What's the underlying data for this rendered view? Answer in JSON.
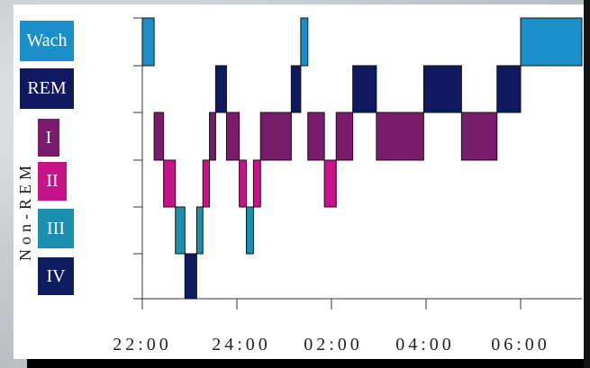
{
  "chart_data": {
    "type": "step",
    "stages": [
      "Wach",
      "REM",
      "I",
      "II",
      "III",
      "IV"
    ],
    "stage_group_label": "Non-REM",
    "stage_colors": {
      "Wach": "#1b8fc9",
      "REM": "#0f1a5e",
      "I": "#7a1c6c",
      "II": "#c8128a",
      "III": "#1b8fb0",
      "IV": "#101c62"
    },
    "x_ticks": [
      "22:00",
      "24:00",
      "02:00",
      "04:00",
      "06:00"
    ],
    "x_range_hours": [
      22.0,
      31.0
    ],
    "hypnogram": [
      {
        "start": 22.0,
        "end": 22.25,
        "stage": "Wach"
      },
      {
        "start": 22.25,
        "end": 22.45,
        "stage": "I"
      },
      {
        "start": 22.45,
        "end": 22.7,
        "stage": "II"
      },
      {
        "start": 22.7,
        "end": 22.9,
        "stage": "III"
      },
      {
        "start": 22.9,
        "end": 23.15,
        "stage": "IV"
      },
      {
        "start": 23.15,
        "end": 23.28,
        "stage": "III"
      },
      {
        "start": 23.28,
        "end": 23.42,
        "stage": "II"
      },
      {
        "start": 23.42,
        "end": 23.55,
        "stage": "I"
      },
      {
        "start": 23.55,
        "end": 23.78,
        "stage": "REM"
      },
      {
        "start": 23.78,
        "end": 24.05,
        "stage": "I"
      },
      {
        "start": 24.05,
        "end": 24.2,
        "stage": "II"
      },
      {
        "start": 24.2,
        "end": 24.35,
        "stage": "III"
      },
      {
        "start": 24.35,
        "end": 24.5,
        "stage": "II"
      },
      {
        "start": 24.5,
        "end": 25.15,
        "stage": "I"
      },
      {
        "start": 25.15,
        "end": 25.35,
        "stage": "REM"
      },
      {
        "start": 25.35,
        "end": 25.5,
        "stage": "Wach"
      },
      {
        "start": 25.5,
        "end": 25.85,
        "stage": "I"
      },
      {
        "start": 25.85,
        "end": 26.1,
        "stage": "II"
      },
      {
        "start": 26.1,
        "end": 26.45,
        "stage": "I"
      },
      {
        "start": 26.45,
        "end": 26.95,
        "stage": "REM"
      },
      {
        "start": 26.95,
        "end": 27.95,
        "stage": "I"
      },
      {
        "start": 27.95,
        "end": 28.75,
        "stage": "REM"
      },
      {
        "start": 28.75,
        "end": 29.5,
        "stage": "I"
      },
      {
        "start": 29.5,
        "end": 30.0,
        "stage": "REM"
      },
      {
        "start": 30.0,
        "end": 31.3,
        "stage": "Wach"
      }
    ]
  }
}
